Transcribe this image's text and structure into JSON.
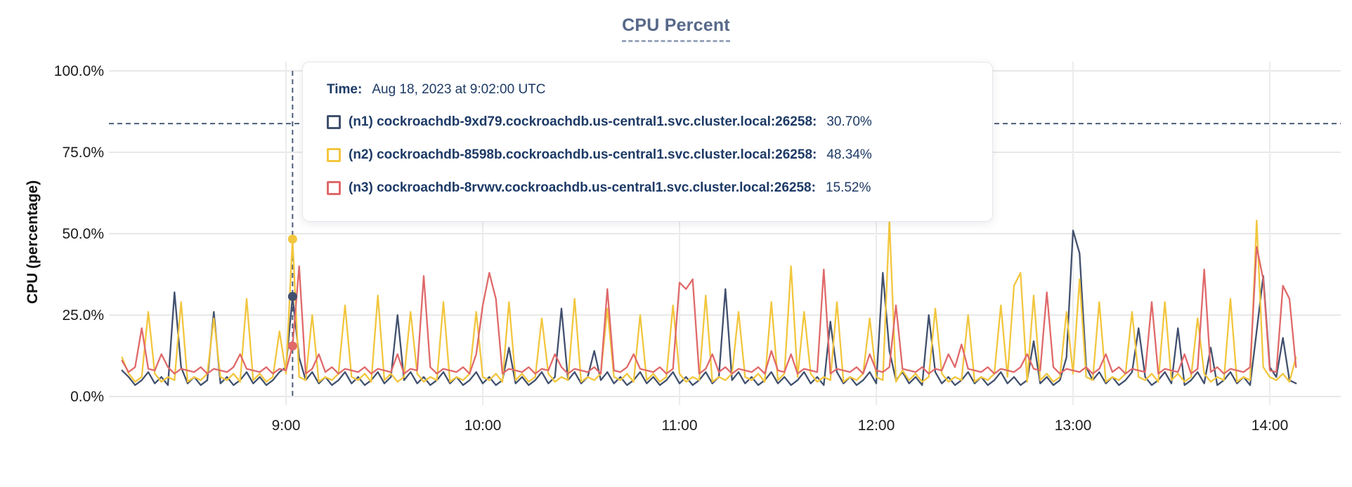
{
  "header": {
    "title": "CPU Percent"
  },
  "tooltip": {
    "time_label": "Time:",
    "time_value": "Aug 18, 2023 at 9:02:00 UTC",
    "rows": [
      {
        "name": "(n1) cockroachdb-9xd79.cockroachdb.us-central1.svc.cluster.local:26258:",
        "value": "30.70%",
        "color": "#41506e"
      },
      {
        "name": "(n2) cockroachdb-8598b.cockroachdb.us-central1.svc.cluster.local:26258:",
        "value": "48.34%",
        "color": "#f2c63e"
      },
      {
        "name": "(n3) cockroachdb-8rvwv.cockroachdb.us-central1.svc.cluster.local:26258:",
        "value": "15.52%",
        "color": "#e0696a"
      }
    ]
  },
  "colors": {
    "title_slate": "#57688a",
    "crosshair": "#4b5d7a",
    "grid_h": "#e8e8e8",
    "grid_v": "#ececec",
    "axis_text": "#1b1b1b",
    "tooltip_text": "#1d3a66"
  },
  "chart_data": {
    "type": "line",
    "title": "CPU Percent",
    "ylabel": "CPU (percentage)",
    "xlabel": "",
    "ylim": [
      0,
      100
    ],
    "grid": true,
    "y_ticks": {
      "labels": [
        "100.0%",
        "75.0%",
        "50.0%",
        "25.0%",
        "0.0%"
      ],
      "pcts": [
        100,
        75,
        50,
        25,
        0
      ]
    },
    "x_ticks": {
      "labels": [
        "9:00",
        "10:00",
        "11:00",
        "12:00",
        "13:00",
        "14:00"
      ],
      "minutes": [
        540,
        600,
        660,
        720,
        780,
        840
      ]
    },
    "x_start_minutes": 490,
    "x_step_minutes": 2,
    "crosshair": {
      "time": "9:02",
      "minutes": 542,
      "hline_pct": 83.8,
      "point_values": [
        30.7,
        48.34,
        15.52
      ]
    },
    "series": [
      {
        "name": "(n1) cockroachdb-9xd79.cockroachdb.us-central1.svc.cluster.local:26258",
        "color": "#41506e",
        "values": [
          8,
          6,
          3.5,
          5,
          7.5,
          4,
          6,
          3.5,
          32,
          9,
          4,
          6,
          3.5,
          5,
          26,
          4,
          6,
          3.5,
          5,
          7.5,
          4,
          6,
          3.5,
          5,
          7.5,
          9,
          30.7,
          12,
          5,
          7.5,
          4,
          6,
          3.5,
          5,
          7.5,
          4,
          6,
          3.5,
          5,
          7.5,
          4,
          6,
          25,
          5,
          7.5,
          4,
          6,
          3.5,
          5,
          7.5,
          4,
          6,
          3.5,
          5,
          7.5,
          4,
          6,
          3.5,
          5,
          15,
          4,
          6,
          3.5,
          5,
          7.5,
          4,
          6,
          27,
          5,
          7.5,
          4,
          6,
          14,
          5,
          7.5,
          4,
          6,
          3.5,
          5,
          7.5,
          4,
          6,
          3.5,
          5,
          7.5,
          4,
          6,
          3.5,
          5,
          7.5,
          4,
          6,
          33,
          5,
          7.5,
          4,
          6,
          3.5,
          5,
          7.5,
          4,
          6,
          3.5,
          5,
          7.5,
          4,
          6,
          3.5,
          23,
          7.5,
          4,
          6,
          3.5,
          5,
          7.5,
          4,
          38,
          14,
          5,
          7.5,
          4,
          6,
          3.5,
          25,
          7.5,
          4,
          6,
          3.5,
          5,
          7.5,
          4,
          6,
          3.5,
          5,
          7.5,
          4,
          6,
          3.5,
          5,
          17,
          4,
          6,
          3.5,
          5,
          12,
          51,
          44,
          9,
          5,
          7.5,
          4,
          6,
          3.5,
          5,
          7.5,
          21,
          6,
          3.5,
          5,
          7.5,
          4,
          21,
          3.5,
          5,
          7.5,
          4,
          15,
          3.5,
          5,
          7.5,
          4,
          6,
          3.5,
          20,
          37,
          9,
          6,
          18,
          5,
          4
        ]
      },
      {
        "name": "(n2) cockroachdb-8598b.cockroachdb.us-central1.svc.cluster.local:26258",
        "color": "#f2c63e",
        "values": [
          12,
          7,
          4.5,
          6,
          26,
          7,
          4.5,
          6,
          5,
          29,
          4.5,
          6,
          5,
          7,
          24,
          6,
          5,
          7,
          4.5,
          30,
          5,
          7,
          4.5,
          6,
          20,
          7,
          48.34,
          6,
          5,
          25,
          4.5,
          6,
          5,
          7,
          28,
          6,
          5,
          7,
          4.5,
          31,
          5,
          7,
          4.5,
          6,
          26,
          7,
          4.5,
          6,
          5,
          29,
          4.5,
          6,
          5,
          7,
          26,
          6,
          5,
          7,
          4.5,
          29,
          5,
          7,
          4.5,
          6,
          24,
          7,
          4.5,
          6,
          5,
          30,
          4.5,
          6,
          5,
          7,
          27,
          6,
          5,
          7,
          4.5,
          25,
          5,
          7,
          4.5,
          6,
          28,
          7,
          4.5,
          6,
          5,
          31,
          4.5,
          6,
          5,
          7,
          26,
          6,
          5,
          7,
          4.5,
          29,
          5,
          7,
          40,
          6,
          26,
          7,
          4.5,
          6,
          5,
          29,
          4.5,
          6,
          5,
          7,
          24,
          6,
          5,
          54,
          4.5,
          8,
          5,
          7,
          4.5,
          6,
          27,
          7,
          4.5,
          6,
          5,
          25,
          4.5,
          6,
          5,
          7,
          28,
          6,
          34,
          38,
          4.5,
          31,
          5,
          7,
          4.5,
          6,
          26,
          7,
          36,
          6,
          5,
          29,
          4.5,
          6,
          5,
          7,
          26,
          6,
          5,
          7,
          4.5,
          29,
          5,
          7,
          4.5,
          6,
          24,
          7,
          4.5,
          6,
          5,
          30,
          4.5,
          6,
          5,
          54,
          9,
          6,
          5,
          7,
          4.5,
          12
        ]
      },
      {
        "name": "(n3) cockroachdb-8rvwv.cockroachdb.us-central1.svc.cluster.local:26258",
        "color": "#e0696a",
        "values": [
          11,
          7.5,
          9,
          21,
          8.5,
          8,
          13,
          9,
          7,
          8.5,
          8,
          7.5,
          9,
          7,
          8.5,
          8,
          7.5,
          9,
          13,
          8.5,
          8,
          7.5,
          9,
          7,
          8.5,
          8,
          15.5,
          40,
          7,
          8.5,
          13,
          7.5,
          9,
          7,
          8.5,
          8,
          7.5,
          9,
          7,
          8.5,
          8,
          7.5,
          13,
          7,
          8.5,
          8,
          37,
          9,
          7,
          8.5,
          8,
          7.5,
          9,
          7,
          13,
          28,
          38,
          30,
          7,
          8.5,
          8,
          7.5,
          9,
          7,
          8.5,
          8,
          13,
          9,
          7,
          8.5,
          8,
          7.5,
          9,
          7,
          33,
          8,
          7.5,
          9,
          13,
          8.5,
          8,
          7.5,
          9,
          7,
          8.5,
          35,
          33,
          36,
          7,
          8.5,
          13,
          7.5,
          9,
          7,
          8.5,
          8,
          7.5,
          9,
          7,
          14,
          8,
          7.5,
          13,
          7,
          8.5,
          8,
          7.5,
          39,
          7,
          8.5,
          8,
          7.5,
          9,
          7,
          13,
          8,
          7.5,
          9,
          28,
          8.5,
          8,
          7.5,
          9,
          7,
          8.5,
          8,
          13,
          9,
          16,
          8.5,
          8,
          7.5,
          9,
          7,
          8.5,
          8,
          7.5,
          9,
          13,
          8.5,
          8,
          32,
          9,
          7,
          8.5,
          8,
          7.5,
          9,
          7,
          8.5,
          13,
          7.5,
          9,
          7,
          8.5,
          8,
          7.5,
          29,
          7,
          8.5,
          8,
          7.5,
          13,
          7,
          8.5,
          39,
          7.5,
          9,
          7,
          8.5,
          8,
          7.5,
          9,
          46,
          36,
          8,
          7.5,
          34,
          30,
          9
        ]
      }
    ]
  }
}
